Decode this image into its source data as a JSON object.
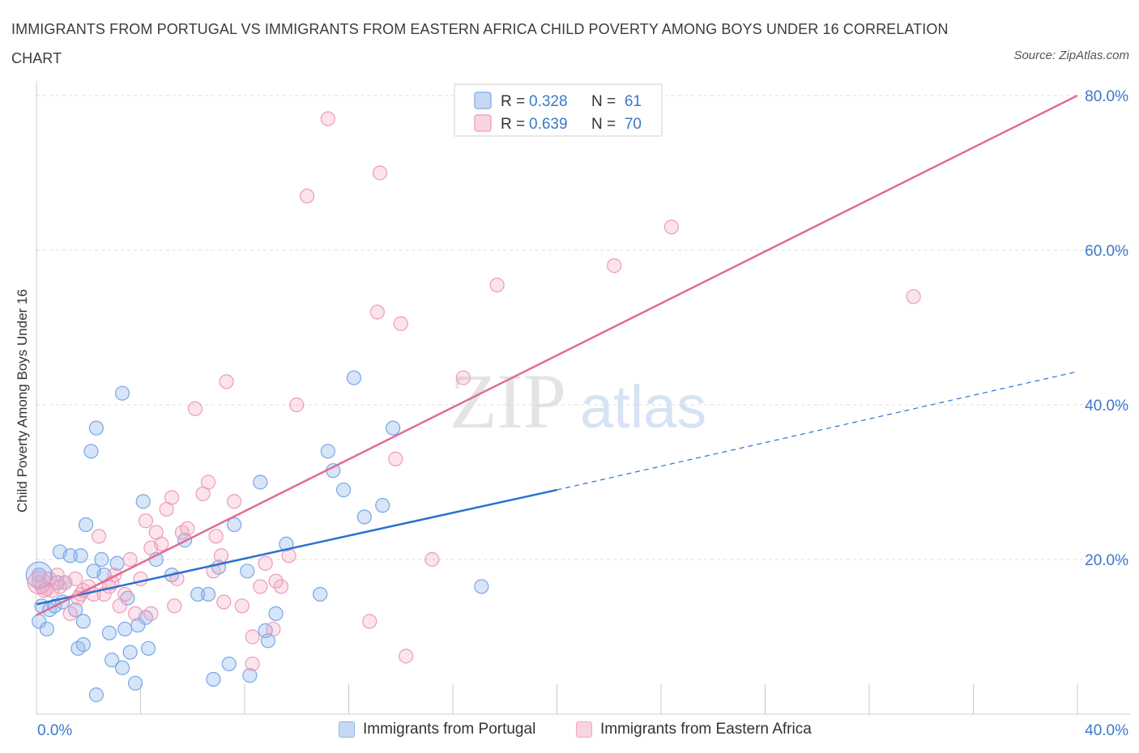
{
  "title": "IMMIGRANTS FROM PORTUGAL VS IMMIGRANTS FROM EASTERN AFRICA CHILD POVERTY AMONG BOYS UNDER 16 CORRELATION CHART",
  "source": "Source: ZipAtlas.com",
  "watermark": {
    "zip": "ZIP",
    "atlas": "atlas"
  },
  "colors": {
    "blue": "#8db4ec",
    "blue_line": "#2a72cf",
    "pink": "#f3a6c0",
    "pink_line": "#e06c94",
    "accent_text": "#3a78c9"
  },
  "chart_data": {
    "type": "scatter",
    "ylabel": "Child Poverty Among Boys Under 16",
    "xlim": [
      0,
      40
    ],
    "ylim": [
      0,
      80
    ],
    "x_tick_labels": [
      "0.0%",
      "40.0%"
    ],
    "y_tick_labels": [
      {
        "value": 20,
        "label": "20.0%"
      },
      {
        "value": 40,
        "label": "40.0%"
      },
      {
        "value": 60,
        "label": "60.0%"
      },
      {
        "value": 80,
        "label": "80.0%"
      }
    ],
    "grid": true,
    "legend_position": "top-center",
    "series": [
      {
        "name": "Immigrants from Portugal",
        "color": "#8db4ec",
        "R": "0.328",
        "N": "61",
        "trend": {
          "x0": 0,
          "y0": 14.2,
          "x1": 20,
          "y1": 29.0,
          "dash_to_x": 40,
          "dash_to_y": 44.3
        },
        "points": [
          [
            0.1,
            18
          ],
          [
            0.1,
            12
          ],
          [
            0.2,
            14
          ],
          [
            0.4,
            11
          ],
          [
            0.5,
            13.5
          ],
          [
            0.7,
            14
          ],
          [
            0.8,
            17
          ],
          [
            0.9,
            21
          ],
          [
            1.0,
            14.5
          ],
          [
            1.1,
            17
          ],
          [
            1.3,
            20.5
          ],
          [
            1.5,
            13.5
          ],
          [
            1.6,
            8.5
          ],
          [
            1.7,
            20.5
          ],
          [
            1.8,
            12
          ],
          [
            1.9,
            24.5
          ],
          [
            2.1,
            34
          ],
          [
            2.2,
            18.5
          ],
          [
            2.3,
            37
          ],
          [
            2.5,
            20
          ],
          [
            2.6,
            18
          ],
          [
            2.8,
            10.5
          ],
          [
            2.9,
            7
          ],
          [
            3.1,
            19.5
          ],
          [
            3.3,
            6
          ],
          [
            3.4,
            11
          ],
          [
            3.5,
            15
          ],
          [
            3.6,
            8
          ],
          [
            3.8,
            4
          ],
          [
            3.9,
            11.5
          ],
          [
            4.1,
            27.5
          ],
          [
            4.2,
            12.5
          ],
          [
            4.3,
            8.5
          ],
          [
            4.6,
            20
          ],
          [
            5.2,
            18
          ],
          [
            5.7,
            22.5
          ],
          [
            6.2,
            15.5
          ],
          [
            6.6,
            15.5
          ],
          [
            6.8,
            4.5
          ],
          [
            7.0,
            19
          ],
          [
            7.6,
            24.5
          ],
          [
            8.1,
            18.5
          ],
          [
            8.6,
            30
          ],
          [
            8.9,
            9.5
          ],
          [
            9.2,
            13
          ],
          [
            9.6,
            22
          ],
          [
            10.9,
            15.5
          ],
          [
            11.2,
            34
          ],
          [
            11.4,
            31.5
          ],
          [
            11.8,
            29
          ],
          [
            12.2,
            43.5
          ],
          [
            12.6,
            25.5
          ],
          [
            13.3,
            27
          ],
          [
            13.7,
            37
          ],
          [
            17.1,
            16.5
          ],
          [
            3.3,
            41.5
          ],
          [
            8.2,
            5
          ],
          [
            7.4,
            6.5
          ],
          [
            8.8,
            10.8
          ],
          [
            2.3,
            2.5
          ],
          [
            1.8,
            9
          ]
        ]
      },
      {
        "name": "Immigrants from Eastern Africa",
        "color": "#f3a6c0",
        "R": "0.639",
        "N": "70",
        "trend": {
          "x0": 0,
          "y0": 12.8,
          "x1": 40,
          "y1": 80.0
        },
        "points": [
          [
            0.1,
            17
          ],
          [
            0.2,
            16.5
          ],
          [
            0.3,
            16
          ],
          [
            0.5,
            17.5
          ],
          [
            0.6,
            16
          ],
          [
            0.8,
            18
          ],
          [
            0.9,
            16.5
          ],
          [
            1.1,
            17
          ],
          [
            1.3,
            13
          ],
          [
            1.5,
            17.5
          ],
          [
            1.7,
            15.5
          ],
          [
            1.8,
            16
          ],
          [
            2.0,
            16.5
          ],
          [
            2.2,
            15.5
          ],
          [
            2.4,
            23
          ],
          [
            2.6,
            15.5
          ],
          [
            2.8,
            16.5
          ],
          [
            3.0,
            18
          ],
          [
            3.2,
            14
          ],
          [
            3.4,
            15.5
          ],
          [
            3.6,
            20
          ],
          [
            3.8,
            13
          ],
          [
            4.0,
            17.5
          ],
          [
            4.2,
            25
          ],
          [
            4.4,
            13
          ],
          [
            4.6,
            23.5
          ],
          [
            4.8,
            22
          ],
          [
            5.0,
            26.5
          ],
          [
            5.2,
            28
          ],
          [
            5.4,
            17.5
          ],
          [
            5.6,
            23.5
          ],
          [
            5.8,
            24
          ],
          [
            6.1,
            39.5
          ],
          [
            6.4,
            28.5
          ],
          [
            6.6,
            30
          ],
          [
            6.9,
            23
          ],
          [
            7.1,
            20.5
          ],
          [
            7.3,
            43
          ],
          [
            7.6,
            27.5
          ],
          [
            7.9,
            14
          ],
          [
            8.3,
            10
          ],
          [
            8.6,
            16.5
          ],
          [
            8.8,
            19.5
          ],
          [
            9.1,
            11
          ],
          [
            9.4,
            16.5
          ],
          [
            9.7,
            20.5
          ],
          [
            10.0,
            40
          ],
          [
            10.4,
            67
          ],
          [
            11.2,
            77
          ],
          [
            12.8,
            12
          ],
          [
            13.1,
            52
          ],
          [
            13.2,
            70
          ],
          [
            13.8,
            33
          ],
          [
            14.0,
            50.5
          ],
          [
            14.2,
            7.5
          ],
          [
            15.2,
            20
          ],
          [
            16.4,
            43.5
          ],
          [
            17.7,
            55.5
          ],
          [
            22.2,
            58
          ],
          [
            24.4,
            63
          ],
          [
            33.7,
            54
          ],
          [
            6.8,
            18.5
          ],
          [
            5.3,
            14
          ],
          [
            4.4,
            21.5
          ],
          [
            2.9,
            17
          ],
          [
            1.6,
            15
          ],
          [
            0.4,
            16.2
          ],
          [
            9.2,
            17.2
          ],
          [
            7.2,
            14.5
          ],
          [
            8.3,
            6.5
          ]
        ]
      }
    ]
  },
  "legend_top": [
    {
      "r_label": "R = ",
      "r_value": "0.328",
      "n_label": "N = ",
      "n_value": "61"
    },
    {
      "r_label": "R = ",
      "r_value": "0.639",
      "n_label": "N = ",
      "n_value": "70"
    }
  ],
  "legend_bottom": [
    "Immigrants from Portugal",
    "Immigrants from Eastern Africa"
  ]
}
